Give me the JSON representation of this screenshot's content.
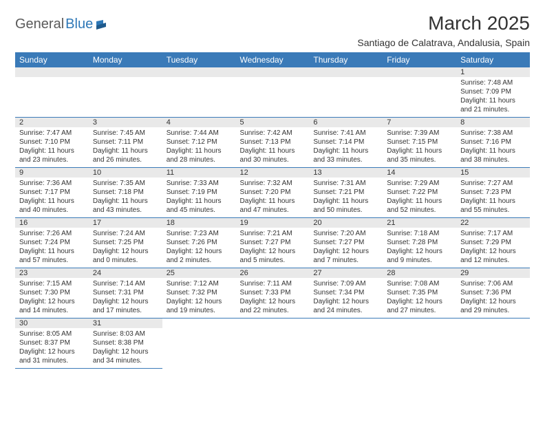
{
  "brand": {
    "part1": "General",
    "part2": "Blue",
    "logo_color": "#2e78b7"
  },
  "title": "March 2025",
  "location": "Santiago de Calatrava, Andalusia, Spain",
  "header_bg": "#3a7ab8",
  "daynum_bg": "#e9e9e9",
  "border_color": "#3a7ab8",
  "weekdays": [
    "Sunday",
    "Monday",
    "Tuesday",
    "Wednesday",
    "Thursday",
    "Friday",
    "Saturday"
  ],
  "weeks": [
    [
      null,
      null,
      null,
      null,
      null,
      null,
      {
        "n": "1",
        "sr": "Sunrise: 7:48 AM",
        "ss": "Sunset: 7:09 PM",
        "dl": "Daylight: 11 hours and 21 minutes."
      }
    ],
    [
      {
        "n": "2",
        "sr": "Sunrise: 7:47 AM",
        "ss": "Sunset: 7:10 PM",
        "dl": "Daylight: 11 hours and 23 minutes."
      },
      {
        "n": "3",
        "sr": "Sunrise: 7:45 AM",
        "ss": "Sunset: 7:11 PM",
        "dl": "Daylight: 11 hours and 26 minutes."
      },
      {
        "n": "4",
        "sr": "Sunrise: 7:44 AM",
        "ss": "Sunset: 7:12 PM",
        "dl": "Daylight: 11 hours and 28 minutes."
      },
      {
        "n": "5",
        "sr": "Sunrise: 7:42 AM",
        "ss": "Sunset: 7:13 PM",
        "dl": "Daylight: 11 hours and 30 minutes."
      },
      {
        "n": "6",
        "sr": "Sunrise: 7:41 AM",
        "ss": "Sunset: 7:14 PM",
        "dl": "Daylight: 11 hours and 33 minutes."
      },
      {
        "n": "7",
        "sr": "Sunrise: 7:39 AM",
        "ss": "Sunset: 7:15 PM",
        "dl": "Daylight: 11 hours and 35 minutes."
      },
      {
        "n": "8",
        "sr": "Sunrise: 7:38 AM",
        "ss": "Sunset: 7:16 PM",
        "dl": "Daylight: 11 hours and 38 minutes."
      }
    ],
    [
      {
        "n": "9",
        "sr": "Sunrise: 7:36 AM",
        "ss": "Sunset: 7:17 PM",
        "dl": "Daylight: 11 hours and 40 minutes."
      },
      {
        "n": "10",
        "sr": "Sunrise: 7:35 AM",
        "ss": "Sunset: 7:18 PM",
        "dl": "Daylight: 11 hours and 43 minutes."
      },
      {
        "n": "11",
        "sr": "Sunrise: 7:33 AM",
        "ss": "Sunset: 7:19 PM",
        "dl": "Daylight: 11 hours and 45 minutes."
      },
      {
        "n": "12",
        "sr": "Sunrise: 7:32 AM",
        "ss": "Sunset: 7:20 PM",
        "dl": "Daylight: 11 hours and 47 minutes."
      },
      {
        "n": "13",
        "sr": "Sunrise: 7:31 AM",
        "ss": "Sunset: 7:21 PM",
        "dl": "Daylight: 11 hours and 50 minutes."
      },
      {
        "n": "14",
        "sr": "Sunrise: 7:29 AM",
        "ss": "Sunset: 7:22 PM",
        "dl": "Daylight: 11 hours and 52 minutes."
      },
      {
        "n": "15",
        "sr": "Sunrise: 7:27 AM",
        "ss": "Sunset: 7:23 PM",
        "dl": "Daylight: 11 hours and 55 minutes."
      }
    ],
    [
      {
        "n": "16",
        "sr": "Sunrise: 7:26 AM",
        "ss": "Sunset: 7:24 PM",
        "dl": "Daylight: 11 hours and 57 minutes."
      },
      {
        "n": "17",
        "sr": "Sunrise: 7:24 AM",
        "ss": "Sunset: 7:25 PM",
        "dl": "Daylight: 12 hours and 0 minutes."
      },
      {
        "n": "18",
        "sr": "Sunrise: 7:23 AM",
        "ss": "Sunset: 7:26 PM",
        "dl": "Daylight: 12 hours and 2 minutes."
      },
      {
        "n": "19",
        "sr": "Sunrise: 7:21 AM",
        "ss": "Sunset: 7:27 PM",
        "dl": "Daylight: 12 hours and 5 minutes."
      },
      {
        "n": "20",
        "sr": "Sunrise: 7:20 AM",
        "ss": "Sunset: 7:27 PM",
        "dl": "Daylight: 12 hours and 7 minutes."
      },
      {
        "n": "21",
        "sr": "Sunrise: 7:18 AM",
        "ss": "Sunset: 7:28 PM",
        "dl": "Daylight: 12 hours and 9 minutes."
      },
      {
        "n": "22",
        "sr": "Sunrise: 7:17 AM",
        "ss": "Sunset: 7:29 PM",
        "dl": "Daylight: 12 hours and 12 minutes."
      }
    ],
    [
      {
        "n": "23",
        "sr": "Sunrise: 7:15 AM",
        "ss": "Sunset: 7:30 PM",
        "dl": "Daylight: 12 hours and 14 minutes."
      },
      {
        "n": "24",
        "sr": "Sunrise: 7:14 AM",
        "ss": "Sunset: 7:31 PM",
        "dl": "Daylight: 12 hours and 17 minutes."
      },
      {
        "n": "25",
        "sr": "Sunrise: 7:12 AM",
        "ss": "Sunset: 7:32 PM",
        "dl": "Daylight: 12 hours and 19 minutes."
      },
      {
        "n": "26",
        "sr": "Sunrise: 7:11 AM",
        "ss": "Sunset: 7:33 PM",
        "dl": "Daylight: 12 hours and 22 minutes."
      },
      {
        "n": "27",
        "sr": "Sunrise: 7:09 AM",
        "ss": "Sunset: 7:34 PM",
        "dl": "Daylight: 12 hours and 24 minutes."
      },
      {
        "n": "28",
        "sr": "Sunrise: 7:08 AM",
        "ss": "Sunset: 7:35 PM",
        "dl": "Daylight: 12 hours and 27 minutes."
      },
      {
        "n": "29",
        "sr": "Sunrise: 7:06 AM",
        "ss": "Sunset: 7:36 PM",
        "dl": "Daylight: 12 hours and 29 minutes."
      }
    ],
    [
      {
        "n": "30",
        "sr": "Sunrise: 8:05 AM",
        "ss": "Sunset: 8:37 PM",
        "dl": "Daylight: 12 hours and 31 minutes."
      },
      {
        "n": "31",
        "sr": "Sunrise: 8:03 AM",
        "ss": "Sunset: 8:38 PM",
        "dl": "Daylight: 12 hours and 34 minutes."
      },
      null,
      null,
      null,
      null,
      null
    ]
  ]
}
